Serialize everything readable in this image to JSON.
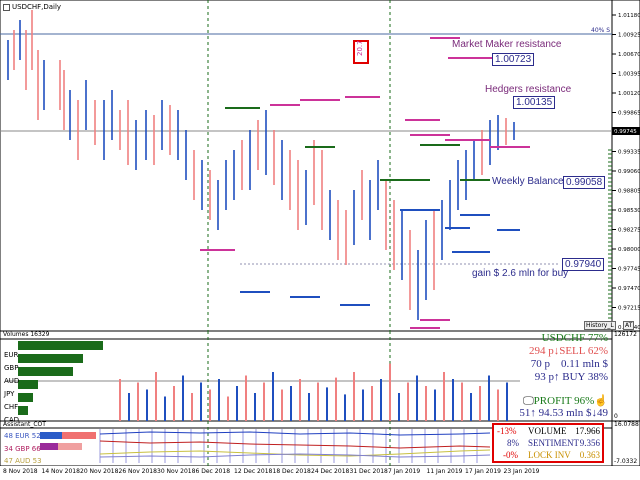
{
  "window": {
    "title": "USDCHF,Daily",
    "ohlc_placeholder": "0.99..."
  },
  "price_axis": {
    "labels": [
      "1.01180",
      "1.00925",
      "1.00670",
      "1.00395",
      "1.00120",
      "0.99865",
      "0.99590",
      "0.99335",
      "0.99060",
      "0.98805",
      "0.98530",
      "0.98275",
      "0.98000",
      "0.97745",
      "0.97470",
      "0.97215",
      "0.96940"
    ],
    "current_price": "0.99745",
    "percent_note": "40% S"
  },
  "annotations": {
    "market_maker_label": "Market Maker resistance",
    "market_maker_value": "1.00723",
    "hedgers_label": "Hedgers resistance",
    "hedgers_value": "1.00135",
    "weekly_balance_label": "Weekly Balance",
    "weekly_balance_value": "0.99058",
    "buy_level_value": "0.97940",
    "gain_label": "gain $ 2.6 mln for buy",
    "boxed_number": "20.7",
    "history_button": "History_L",
    "at_button": "AT"
  },
  "volumes_panel": {
    "title": "Volumes 16329",
    "axis_top": "126172",
    "axis_bottom": "0",
    "currencies": [
      "EUR",
      "GBP",
      "AUD",
      "JPY",
      "CHF",
      "CAD"
    ],
    "currency_strength": [
      0.85,
      0.65,
      0.55,
      0.2,
      0.15,
      0.1
    ],
    "stats": {
      "pair_line": "USDCHF 77%",
      "sell_line": "294 p↓SELL 62%",
      "mid_line": "70 p    0.11 mln $",
      "buy_line": "93 p↑ BUY 38%",
      "profit_line": "PROFIT 96%",
      "bottom_line": "51↑ 94.53 mln $↓49"
    }
  },
  "cot_panel": {
    "title": "Assistant_COT",
    "left_labels": [
      {
        "text": "48 EUR 52"
      },
      {
        "text": "34 GBP 66"
      },
      {
        "text": "47 AUD 53"
      }
    ],
    "axis_top": "16.0788",
    "axis_bottom": "-7.0332"
  },
  "summary_box": {
    "rows": [
      {
        "pct": "-13%",
        "label": "VOLUME",
        "value": "17.966"
      },
      {
        "pct": "8%",
        "label": "SENTIMENT",
        "value": "9.356"
      },
      {
        "pct": "-0%",
        "label": "LOCK INV",
        "value": "0.363"
      }
    ]
  },
  "time_axis": [
    "8 Nov 2018",
    "14 Nov 2018",
    "20 Nov 2018",
    "26 Nov 2018",
    "30 Nov 2018",
    "6 Dec 2018",
    "12 Dec 2018",
    "18 Dec 2018",
    "24 Dec 2018",
    "31 Dec 2018",
    "7 Jan 2019",
    "11 Jan 2019",
    "17 Jan 2019",
    "23 Jan 2019"
  ],
  "colors": {
    "bull": "#1f4fbf",
    "bear": "#f08080",
    "maker": "#cc3399",
    "hedgers": "#cc3399",
    "balance": "#1a6b1a",
    "text_purple": "#7a2a7a",
    "text_blue": "#2c2c8c",
    "grid": "#7a7a7a"
  }
}
